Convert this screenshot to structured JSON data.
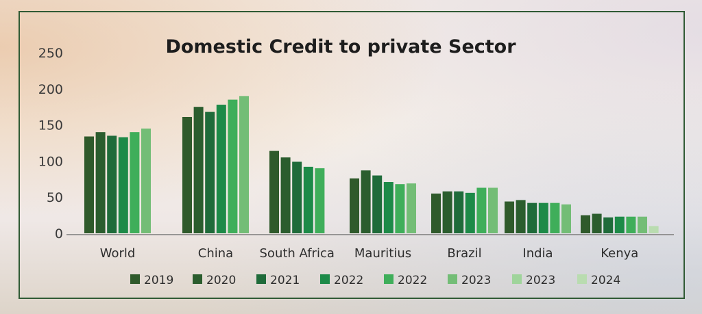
{
  "chart_data": {
    "type": "bar",
    "title": "Domestic Credit to private Sector",
    "xlabel": "",
    "ylabel": "",
    "ylim": [
      0,
      250
    ],
    "yticks": [
      "0",
      "50",
      "100",
      "150",
      "200",
      "250"
    ],
    "grid": false,
    "legend_position": "bottom",
    "categories": [
      "World",
      "China",
      "South Africa",
      "Mauritius",
      "Brazil",
      "India",
      "Kenya"
    ],
    "series": [
      {
        "name": "2019",
        "color": "#2f5a2b",
        "values": [
          134,
          161,
          114,
          76,
          55,
          44,
          25
        ]
      },
      {
        "name": "2020",
        "color": "#2b5d2e",
        "values": [
          140,
          175,
          105,
          87,
          58,
          46,
          27
        ]
      },
      {
        "name": "2021",
        "color": "#1f6b3a",
        "values": [
          135,
          168,
          99,
          80,
          58,
          42,
          22
        ]
      },
      {
        "name": "2022",
        "color": "#1d8a48",
        "values": [
          133,
          178,
          92,
          71,
          56,
          42,
          23
        ]
      },
      {
        "name": "2022",
        "color": "#3fae5a",
        "values": [
          140,
          185,
          90,
          68,
          63,
          42,
          23
        ]
      },
      {
        "name": "2023",
        "color": "#73bd76",
        "values": [
          145,
          190,
          null,
          69,
          63,
          40,
          23
        ]
      },
      {
        "name": "2023",
        "color": "#9fd49b",
        "values": [
          null,
          null,
          null,
          null,
          null,
          null,
          null
        ]
      },
      {
        "name": "2024",
        "color": "#b9dcb0",
        "values": [
          null,
          null,
          null,
          null,
          null,
          null,
          10
        ]
      }
    ]
  }
}
